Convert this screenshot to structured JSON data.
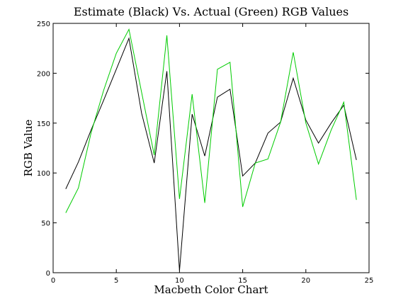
{
  "chart_data": {
    "type": "line",
    "title": "Estimate (Black) Vs. Actual (Green) RGB Values",
    "xlabel": "Macbeth Color Chart",
    "ylabel": "RGB Value",
    "xlim": [
      0,
      25
    ],
    "ylim": [
      0,
      250
    ],
    "xticks": [
      0,
      5,
      10,
      15,
      20,
      25
    ],
    "yticks": [
      0,
      50,
      100,
      150,
      200,
      250
    ],
    "grid": false,
    "x": [
      1,
      2,
      3,
      4,
      5,
      6,
      7,
      8,
      9,
      10,
      11,
      12,
      13,
      14,
      15,
      16,
      17,
      18,
      19,
      20,
      21,
      22,
      23,
      24
    ],
    "series": [
      {
        "color": "#000000",
        "values": [
          84,
          111,
          143,
          173,
          204,
          235,
          160,
          110,
          202,
          2,
          159,
          117,
          176,
          184,
          97,
          110,
          140,
          151,
          195,
          153,
          130,
          150,
          168,
          113
        ]
      },
      {
        "color": "#00cc00",
        "values": [
          60,
          85,
          140,
          183,
          220,
          244,
          181,
          118,
          238,
          74,
          179,
          70,
          204,
          211,
          66,
          110,
          114,
          151,
          221,
          150,
          109,
          143,
          171,
          73
        ]
      }
    ]
  }
}
